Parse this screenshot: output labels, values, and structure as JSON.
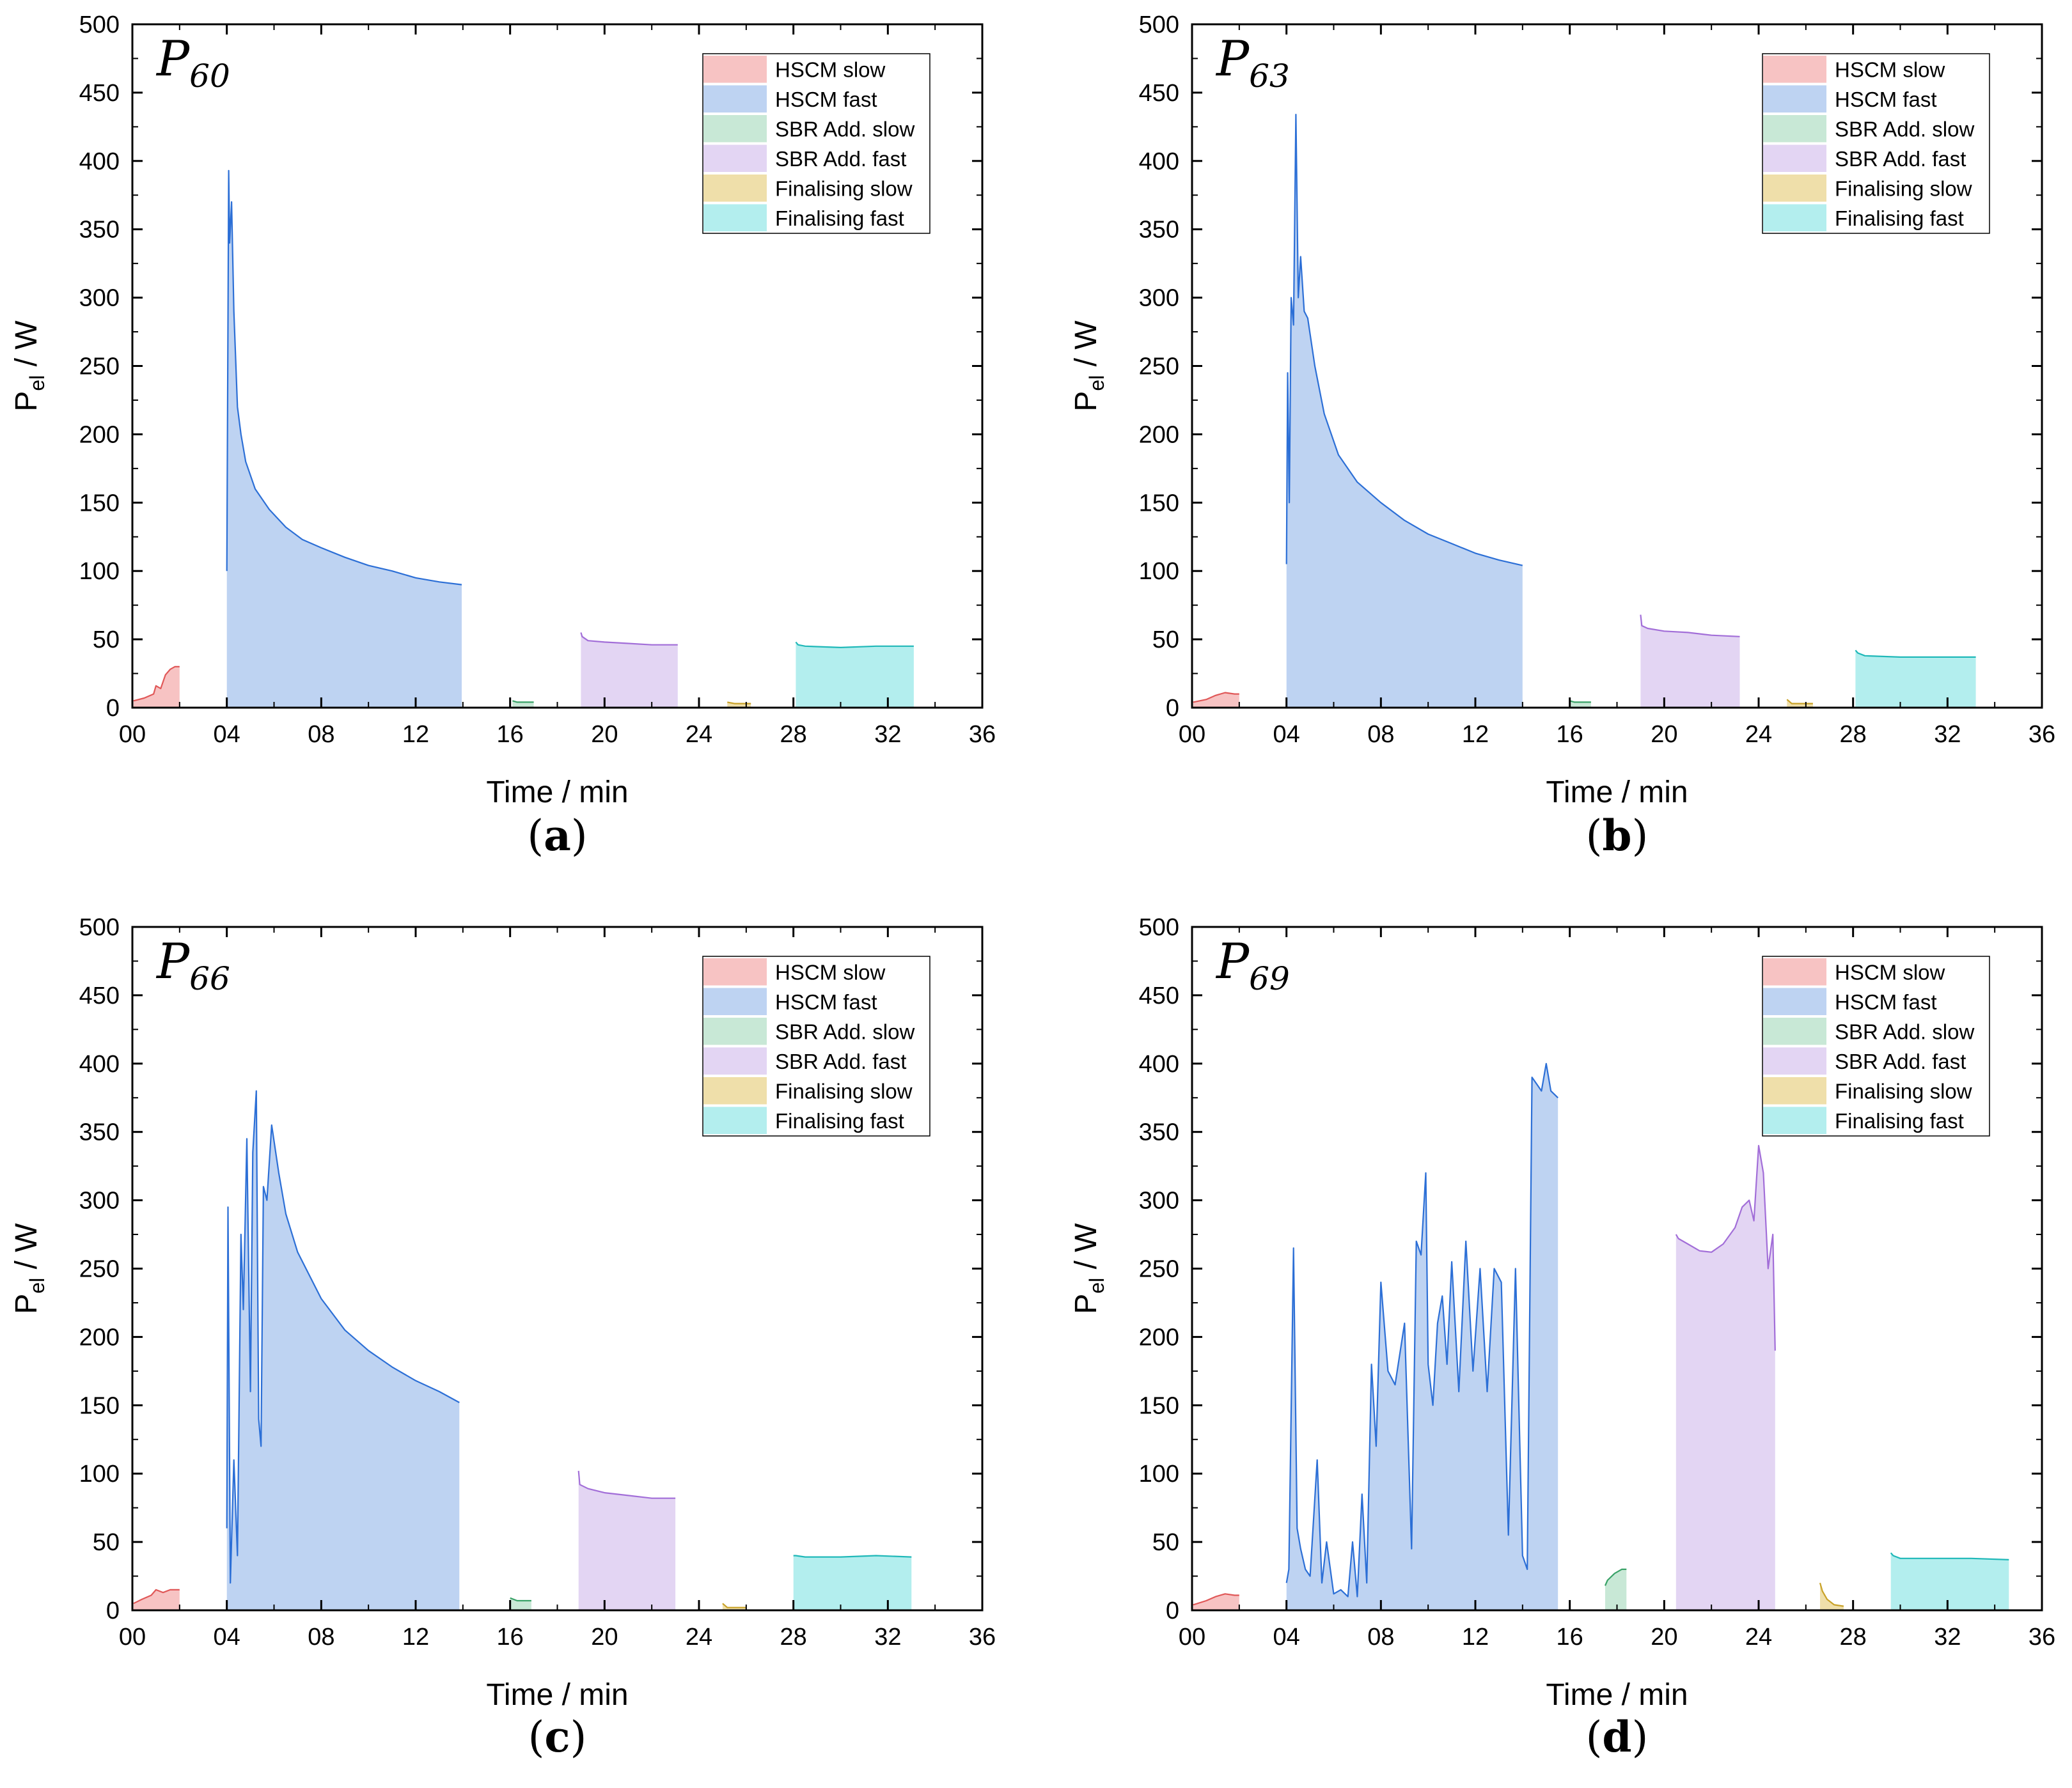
{
  "legend": [
    {
      "key": "hscm_slow",
      "label": "HSCM slow",
      "fill": "#f7c3c3",
      "stroke": "#e05858"
    },
    {
      "key": "hscm_fast",
      "label": "HSCM fast",
      "fill": "#bed3f2",
      "stroke": "#2c6fd6"
    },
    {
      "key": "sbr_slow",
      "label": "SBR Add. slow",
      "fill": "#c8e8d6",
      "stroke": "#3aa268"
    },
    {
      "key": "sbr_fast",
      "label": "SBR Add. fast",
      "fill": "#e3d5f3",
      "stroke": "#a26ed8"
    },
    {
      "key": "fin_slow",
      "label": "Finalising slow",
      "fill": "#efdfaa",
      "stroke": "#c9a228"
    },
    {
      "key": "fin_fast",
      "label": "Finalising fast",
      "fill": "#b3eeee",
      "stroke": "#1fb8b8"
    }
  ],
  "chart_data": [
    {
      "type": "area",
      "panel": "(a)",
      "caption_letter": "a",
      "title_main": "P",
      "title_sub": "60",
      "xlabel": "Time / min",
      "ylabel_main": "P",
      "ylabel_sub": "el",
      "ylabel_tail": " / W",
      "xlim": [
        0,
        36
      ],
      "ylim": [
        0,
        500
      ],
      "xticks": [
        "00",
        "04",
        "08",
        "12",
        "16",
        "20",
        "24",
        "28",
        "32",
        "36"
      ],
      "yticks": [
        "0",
        "50",
        "100",
        "150",
        "200",
        "250",
        "300",
        "350",
        "400",
        "450",
        "500"
      ],
      "series": [
        {
          "name": "HSCM slow",
          "x": [
            0.05,
            0.5,
            0.9,
            1.0,
            1.2,
            1.4,
            1.6,
            1.8,
            2.0
          ],
          "y": [
            5,
            7,
            10,
            16,
            14,
            24,
            28,
            30,
            30
          ]
        },
        {
          "name": "HSCM fast",
          "x": [
            4.0,
            4.08,
            4.12,
            4.2,
            4.3,
            4.45,
            4.6,
            4.8,
            5.2,
            5.8,
            6.5,
            7.2,
            8.0,
            9.0,
            10.0,
            11.0,
            12.0,
            13.0,
            13.95
          ],
          "y": [
            100,
            393,
            340,
            370,
            290,
            220,
            200,
            180,
            160,
            145,
            132,
            123,
            117,
            110,
            104,
            100,
            95,
            92,
            90
          ]
        },
        {
          "name": "SBR Add. slow",
          "x": [
            16.1,
            16.3,
            17.0
          ],
          "y": [
            5,
            4,
            4
          ]
        },
        {
          "name": "SBR Add. fast",
          "x": [
            19.0,
            19.05,
            19.3,
            20.0,
            21.0,
            22.0,
            23.1
          ],
          "y": [
            55,
            52,
            49,
            48,
            47,
            46,
            46
          ]
        },
        {
          "name": "Finalising slow",
          "x": [
            25.2,
            25.5,
            26.2
          ],
          "y": [
            4,
            3,
            3
          ]
        },
        {
          "name": "Finalising fast",
          "x": [
            28.1,
            28.2,
            28.5,
            30.0,
            31.5,
            33.1
          ],
          "y": [
            48,
            46,
            45,
            44,
            45,
            45
          ]
        }
      ]
    },
    {
      "type": "area",
      "panel": "(b)",
      "caption_letter": "b",
      "title_main": "P",
      "title_sub": "63",
      "xlabel": "Time / min",
      "ylabel_main": "P",
      "ylabel_sub": "el",
      "ylabel_tail": " / W",
      "xlim": [
        0,
        36
      ],
      "ylim": [
        0,
        500
      ],
      "xticks": [
        "00",
        "04",
        "08",
        "12",
        "16",
        "20",
        "24",
        "28",
        "32",
        "36"
      ],
      "yticks": [
        "0",
        "50",
        "100",
        "150",
        "200",
        "250",
        "300",
        "350",
        "400",
        "450",
        "500"
      ],
      "series": [
        {
          "name": "HSCM slow",
          "x": [
            0.05,
            0.6,
            1.0,
            1.4,
            1.8,
            2.0
          ],
          "y": [
            4,
            6,
            9,
            11,
            10,
            10
          ]
        },
        {
          "name": "HSCM fast",
          "x": [
            4.0,
            4.05,
            4.12,
            4.2,
            4.3,
            4.4,
            4.5,
            4.6,
            4.75,
            4.9,
            5.2,
            5.6,
            6.2,
            7.0,
            8.0,
            9.0,
            10.0,
            11.0,
            12.0,
            13.0,
            14.0
          ],
          "y": [
            105,
            245,
            150,
            300,
            280,
            434,
            300,
            330,
            290,
            285,
            250,
            215,
            185,
            165,
            150,
            137,
            127,
            120,
            113,
            108,
            104
          ]
        },
        {
          "name": "SBR Add. slow",
          "x": [
            16.0,
            16.2,
            16.9
          ],
          "y": [
            5,
            4,
            4
          ]
        },
        {
          "name": "SBR Add. fast",
          "x": [
            19.0,
            19.05,
            19.3,
            20.0,
            21.0,
            22.0,
            23.2
          ],
          "y": [
            68,
            60,
            58,
            56,
            55,
            53,
            52
          ]
        },
        {
          "name": "Finalising slow",
          "x": [
            25.2,
            25.4,
            26.3
          ],
          "y": [
            6,
            3,
            3
          ]
        },
        {
          "name": "Finalising fast",
          "x": [
            28.1,
            28.2,
            28.5,
            30.0,
            31.5,
            33.2
          ],
          "y": [
            42,
            40,
            38,
            37,
            37,
            37
          ]
        }
      ]
    },
    {
      "type": "area",
      "panel": "(c)",
      "caption_letter": "c",
      "title_main": "P",
      "title_sub": "66",
      "xlabel": "Time / min",
      "ylabel_main": "P",
      "ylabel_sub": "el",
      "ylabel_tail": " / W",
      "xlim": [
        0,
        36
      ],
      "ylim": [
        0,
        500
      ],
      "xticks": [
        "00",
        "04",
        "08",
        "12",
        "16",
        "20",
        "24",
        "28",
        "32",
        "36"
      ],
      "yticks": [
        "0",
        "50",
        "100",
        "150",
        "200",
        "250",
        "300",
        "350",
        "400",
        "450",
        "500"
      ],
      "series": [
        {
          "name": "HSCM slow",
          "x": [
            0.05,
            0.4,
            0.8,
            1.0,
            1.3,
            1.6,
            2.0
          ],
          "y": [
            5,
            8,
            11,
            15,
            13,
            15,
            15
          ]
        },
        {
          "name": "HSCM fast",
          "x": [
            4.0,
            4.05,
            4.15,
            4.3,
            4.45,
            4.6,
            4.7,
            4.85,
            5.0,
            5.1,
            5.25,
            5.35,
            5.45,
            5.55,
            5.7,
            5.9,
            6.2,
            6.5,
            7.0,
            7.5,
            8.0,
            9.0,
            10.0,
            11.0,
            12.0,
            13.0,
            13.85
          ],
          "y": [
            60,
            295,
            20,
            110,
            40,
            275,
            220,
            345,
            160,
            335,
            380,
            140,
            120,
            310,
            300,
            355,
            320,
            290,
            262,
            245,
            228,
            205,
            190,
            178,
            168,
            160,
            152
          ]
        },
        {
          "name": "SBR Add. slow",
          "x": [
            16.0,
            16.3,
            16.9
          ],
          "y": [
            9,
            7,
            7
          ]
        },
        {
          "name": "SBR Add. fast",
          "x": [
            18.9,
            18.95,
            19.3,
            20.0,
            21.0,
            22.0,
            23.0
          ],
          "y": [
            102,
            92,
            89,
            86,
            84,
            82,
            82
          ]
        },
        {
          "name": "Finalising slow",
          "x": [
            25.0,
            25.2,
            26.0
          ],
          "y": [
            5,
            2,
            2
          ]
        },
        {
          "name": "Finalising fast",
          "x": [
            28.0,
            28.1,
            28.5,
            30.0,
            31.5,
            33.0
          ],
          "y": [
            40,
            40,
            39,
            39,
            40,
            39
          ]
        }
      ]
    },
    {
      "type": "area",
      "panel": "(d)",
      "caption_letter": "d",
      "title_main": "P",
      "title_sub": "69",
      "xlabel": "Time / min",
      "ylabel_main": "P",
      "ylabel_sub": "el",
      "ylabel_tail": " / W",
      "xlim": [
        0,
        36
      ],
      "ylim": [
        0,
        500
      ],
      "xticks": [
        "00",
        "04",
        "08",
        "12",
        "16",
        "20",
        "24",
        "28",
        "32",
        "36"
      ],
      "yticks": [
        "0",
        "50",
        "100",
        "150",
        "200",
        "250",
        "300",
        "350",
        "400",
        "450",
        "500"
      ],
      "series": [
        {
          "name": "HSCM slow",
          "x": [
            0.05,
            0.6,
            1.0,
            1.4,
            1.8,
            2.0
          ],
          "y": [
            4,
            7,
            10,
            12,
            11,
            11
          ]
        },
        {
          "name": "HSCM fast",
          "x": [
            4.0,
            4.1,
            4.3,
            4.45,
            4.6,
            4.8,
            5.0,
            5.3,
            5.5,
            5.7,
            6.0,
            6.3,
            6.6,
            6.8,
            7.0,
            7.2,
            7.4,
            7.6,
            7.8,
            8.0,
            8.3,
            8.6,
            9.0,
            9.3,
            9.5,
            9.7,
            9.9,
            10.0,
            10.2,
            10.4,
            10.6,
            10.8,
            11.0,
            11.3,
            11.6,
            11.9,
            12.2,
            12.5,
            12.8,
            13.1,
            13.4,
            13.7,
            14.0,
            14.2,
            14.4,
            14.6,
            14.8,
            15.0,
            15.2,
            15.5
          ],
          "y": [
            20,
            30,
            265,
            60,
            45,
            30,
            25,
            110,
            20,
            50,
            12,
            15,
            10,
            50,
            10,
            85,
            20,
            180,
            120,
            240,
            175,
            165,
            210,
            45,
            270,
            260,
            320,
            180,
            150,
            210,
            230,
            180,
            255,
            160,
            270,
            175,
            250,
            160,
            250,
            240,
            55,
            250,
            40,
            30,
            390,
            385,
            380,
            400,
            380,
            375
          ]
        },
        {
          "name": "SBR Add. slow",
          "x": [
            17.5,
            17.6,
            17.9,
            18.2,
            18.4
          ],
          "y": [
            18,
            22,
            27,
            30,
            30
          ]
        },
        {
          "name": "SBR Add. fast",
          "x": [
            20.5,
            20.6,
            21.0,
            21.5,
            22.0,
            22.5,
            23.0,
            23.3,
            23.6,
            23.8,
            24.0,
            24.2,
            24.4,
            24.6,
            24.7
          ],
          "y": [
            275,
            272,
            268,
            263,
            262,
            268,
            280,
            295,
            300,
            285,
            340,
            320,
            250,
            275,
            190
          ]
        },
        {
          "name": "Finalising slow",
          "x": [
            26.6,
            26.7,
            26.9,
            27.2,
            27.6
          ],
          "y": [
            20,
            14,
            8,
            4,
            3
          ]
        },
        {
          "name": "Finalising fast",
          "x": [
            29.6,
            29.7,
            30.0,
            31.5,
            33.0,
            34.6
          ],
          "y": [
            42,
            40,
            38,
            38,
            38,
            37
          ]
        }
      ]
    }
  ]
}
